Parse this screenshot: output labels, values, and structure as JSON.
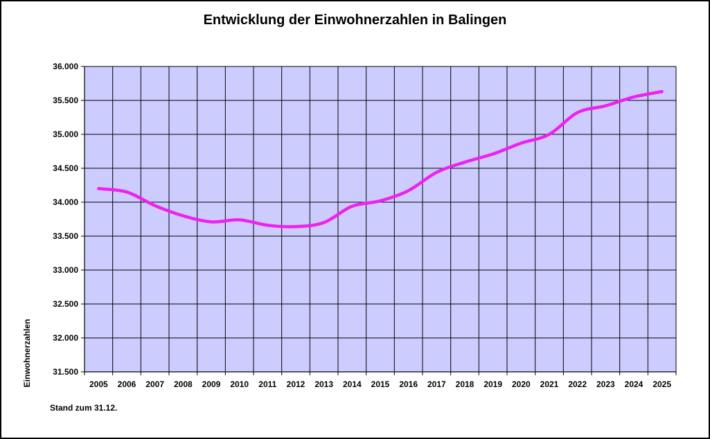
{
  "chart_data": {
    "type": "line",
    "title": "Entwicklung der Einwohnerzahlen in Balingen",
    "xlabel": "",
    "ylabel": "Einwohnerzahlen",
    "ylim": [
      31500,
      36000
    ],
    "y_ticks": [
      "31.500",
      "32.000",
      "32.500",
      "33.000",
      "33.500",
      "34.000",
      "34.500",
      "35.000",
      "35.500",
      "36.000"
    ],
    "categories": [
      "2005",
      "2006",
      "2007",
      "2008",
      "2009",
      "2010",
      "2011",
      "2012",
      "2013",
      "2014",
      "2015",
      "2016",
      "2017",
      "2018",
      "2019",
      "2020",
      "2021",
      "2022",
      "2023",
      "2024",
      "2025"
    ],
    "series": [
      {
        "values": [
          34200,
          34150,
          33950,
          33800,
          33710,
          33740,
          33660,
          33640,
          33700,
          33940,
          34020,
          34170,
          34440,
          34590,
          34710,
          34870,
          35000,
          35320,
          35420,
          35550,
          35630
        ],
        "color": "#ee22ee"
      }
    ],
    "grid": true,
    "plot_background": "#ccccff",
    "note": "Stand zum 31.12."
  }
}
